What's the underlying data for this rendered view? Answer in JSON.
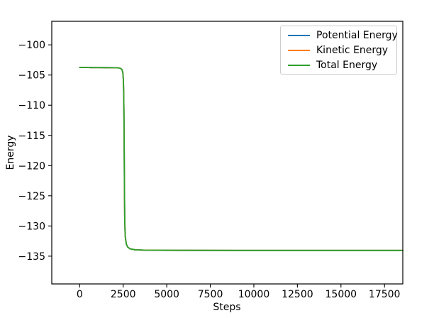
{
  "chart_data": {
    "type": "line",
    "title": "",
    "xlabel": "Steps",
    "ylabel": "Energy",
    "xlim": [
      -1600,
      18550
    ],
    "ylim": [
      -139.6,
      -96.1
    ],
    "xticks": [
      0,
      2500,
      5000,
      7500,
      10000,
      12500,
      15000,
      17500
    ],
    "xtick_labels": [
      "0",
      "2500",
      "5000",
      "7500",
      "10000",
      "12500",
      "15000",
      "17500"
    ],
    "yticks": [
      -135,
      -130,
      -125,
      -120,
      -115,
      -110,
      -105,
      -100
    ],
    "ytick_labels": [
      "−135",
      "−130",
      "−125",
      "−120",
      "−115",
      "−110",
      "−105",
      "−100"
    ],
    "grid": false,
    "legend_position": "upper right",
    "legend_border_color": "#cccccc",
    "axis_color": "#000000",
    "note": "All three series coincide; only the Total Energy (green) curve is visible because it is drawn last.",
    "x": [
      0,
      500,
      1000,
      1500,
      2000,
      2200,
      2350,
      2430,
      2480,
      2510,
      2530,
      2545,
      2560,
      2575,
      2590,
      2620,
      2680,
      2760,
      2900,
      3200,
      3700,
      4500,
      6000,
      9000,
      12000,
      15000,
      18550
    ],
    "series": [
      {
        "name": "Potential Energy",
        "color": "#1f77b4",
        "y": [
          -103.75,
          -103.76,
          -103.77,
          -103.78,
          -103.79,
          -103.8,
          -103.9,
          -104.1,
          -104.6,
          -105.8,
          -108,
          -112,
          -118,
          -125,
          -129.5,
          -131.8,
          -133,
          -133.5,
          -133.8,
          -133.95,
          -134,
          -134.02,
          -134.04,
          -134.05,
          -134.05,
          -134.05,
          -134.05
        ]
      },
      {
        "name": "Kinetic Energy",
        "color": "#ff7f0e",
        "y": [
          -103.75,
          -103.76,
          -103.77,
          -103.78,
          -103.79,
          -103.8,
          -103.9,
          -104.1,
          -104.6,
          -105.8,
          -108,
          -112,
          -118,
          -125,
          -129.5,
          -131.8,
          -133,
          -133.5,
          -133.8,
          -133.95,
          -134,
          -134.02,
          -134.04,
          -134.05,
          -134.05,
          -134.05,
          -134.05
        ]
      },
      {
        "name": "Total Energy",
        "color": "#2ca02c",
        "y": [
          -103.75,
          -103.76,
          -103.77,
          -103.78,
          -103.79,
          -103.8,
          -103.9,
          -104.1,
          -104.6,
          -105.8,
          -108,
          -112,
          -118,
          -125,
          -129.5,
          -131.8,
          -133,
          -133.5,
          -133.8,
          -133.95,
          -134,
          -134.02,
          -134.04,
          -134.05,
          -134.05,
          -134.05,
          -134.05
        ]
      }
    ]
  }
}
